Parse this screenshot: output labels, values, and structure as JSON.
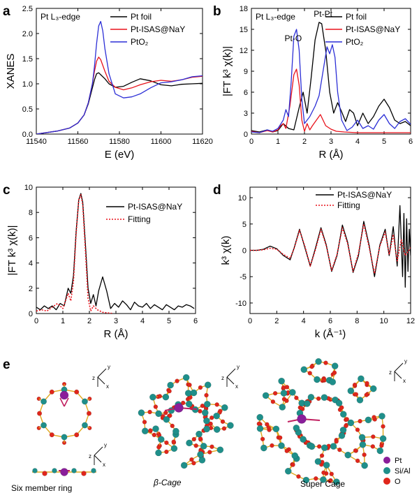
{
  "chart_data": [
    {
      "panel": "a",
      "type": "line",
      "annotation": "Pt L₃-edge",
      "xlabel": "E (eV)",
      "ylabel": "XANES",
      "xlim": [
        11540,
        11620
      ],
      "ylim": [
        0.0,
        2.5
      ],
      "xticks": [
        11540,
        11560,
        11580,
        11600,
        11620
      ],
      "yticks": [
        0.0,
        0.5,
        1.0,
        1.5,
        2.0,
        2.5
      ],
      "legend_position": "top-right",
      "series": [
        {
          "name": "Pt foil",
          "color": "#000000",
          "style": "solid",
          "x": [
            11540,
            11550,
            11556,
            11560,
            11563,
            11565,
            11567,
            11568,
            11569,
            11570,
            11571,
            11573,
            11575,
            11578,
            11582,
            11586,
            11590,
            11595,
            11600,
            11605,
            11610,
            11615,
            11620
          ],
          "y": [
            0.0,
            0.06,
            0.12,
            0.22,
            0.38,
            0.6,
            0.92,
            1.08,
            1.2,
            1.22,
            1.18,
            1.1,
            1.0,
            0.93,
            0.95,
            1.03,
            1.1,
            1.06,
            0.98,
            0.96,
            0.99,
            1.0,
            1.01
          ]
        },
        {
          "name": "Pt-ISAS@NaY",
          "color": "#e8121b",
          "style": "solid",
          "x": [
            11540,
            11550,
            11556,
            11560,
            11563,
            11565,
            11567,
            11568,
            11569,
            11570,
            11571,
            11573,
            11575,
            11578,
            11582,
            11586,
            11590,
            11595,
            11600,
            11605,
            11610,
            11615,
            11620
          ],
          "y": [
            0.0,
            0.06,
            0.12,
            0.22,
            0.38,
            0.62,
            1.0,
            1.25,
            1.45,
            1.53,
            1.48,
            1.25,
            1.05,
            0.93,
            0.88,
            0.92,
            0.98,
            1.04,
            1.07,
            1.05,
            1.08,
            1.13,
            1.15
          ]
        },
        {
          "name": "PtO₂",
          "color": "#2c2fd6",
          "style": "solid",
          "x": [
            11540,
            11550,
            11556,
            11560,
            11563,
            11565,
            11567,
            11568,
            11569,
            11570,
            11571,
            11572,
            11573,
            11575,
            11578,
            11582,
            11586,
            11590,
            11595,
            11600,
            11605,
            11610,
            11615,
            11620
          ],
          "y": [
            0.0,
            0.06,
            0.12,
            0.22,
            0.38,
            0.62,
            1.0,
            1.35,
            1.8,
            2.15,
            2.24,
            2.05,
            1.7,
            1.2,
            0.8,
            0.72,
            0.74,
            0.8,
            0.92,
            1.02,
            1.04,
            1.08,
            1.14,
            1.16
          ]
        }
      ]
    },
    {
      "panel": "b",
      "type": "line",
      "annotation": "Pt L₃-edge",
      "labels": [
        "Pt-O",
        "Pt-Pt"
      ],
      "xlabel": "R (Å)",
      "ylabel": "|FT k³ χ(k)|",
      "xlim": [
        0,
        6
      ],
      "ylim": [
        0,
        18
      ],
      "xticks": [
        0,
        1,
        2,
        3,
        4,
        5,
        6
      ],
      "yticks": [
        0,
        3,
        6,
        9,
        12,
        15,
        18
      ],
      "legend_position": "top-right",
      "series": [
        {
          "name": "Pt foil",
          "color": "#000000",
          "style": "solid",
          "x": [
            0.0,
            0.3,
            0.6,
            0.8,
            1.0,
            1.2,
            1.4,
            1.6,
            1.8,
            1.95,
            2.1,
            2.25,
            2.4,
            2.55,
            2.65,
            2.8,
            2.95,
            3.1,
            3.25,
            3.4,
            3.55,
            3.7,
            3.85,
            4.0,
            4.2,
            4.4,
            4.6,
            4.8,
            5.0,
            5.2,
            5.4,
            5.6,
            5.8,
            6.0
          ],
          "y": [
            0.5,
            0.3,
            0.6,
            0.3,
            0.5,
            1.5,
            0.8,
            0.6,
            3.8,
            6.0,
            3.0,
            8.0,
            13.5,
            16.0,
            15.8,
            12.0,
            6.0,
            3.0,
            4.5,
            3.2,
            1.8,
            3.5,
            3.0,
            1.2,
            3.0,
            1.5,
            2.5,
            4.0,
            5.0,
            3.8,
            2.0,
            1.5,
            1.8,
            1.2
          ]
        },
        {
          "name": "Pt-ISAS@NaY",
          "color": "#e8121b",
          "style": "solid",
          "x": [
            0.0,
            0.3,
            0.6,
            0.8,
            1.0,
            1.1,
            1.2,
            1.3,
            1.45,
            1.6,
            1.7,
            1.8,
            1.9,
            2.0,
            2.1,
            2.2,
            2.3,
            2.45,
            2.6,
            2.8,
            3.0,
            3.2,
            3.5,
            4.0,
            4.5,
            5.0,
            5.5,
            6.0
          ],
          "y": [
            0.4,
            0.2,
            0.5,
            0.3,
            0.6,
            1.2,
            1.5,
            0.8,
            4.0,
            8.5,
            9.3,
            7.0,
            2.0,
            0.4,
            1.5,
            0.6,
            1.2,
            2.0,
            2.8,
            1.2,
            0.7,
            0.4,
            0.3,
            0.2,
            0.2,
            0.2,
            0.2,
            0.2
          ]
        },
        {
          "name": "PtO₂",
          "color": "#2c2fd6",
          "style": "solid",
          "x": [
            0.0,
            0.3,
            0.6,
            0.8,
            1.0,
            1.2,
            1.3,
            1.4,
            1.5,
            1.6,
            1.7,
            1.8,
            1.9,
            2.0,
            2.2,
            2.4,
            2.55,
            2.7,
            2.85,
            2.95,
            3.05,
            3.15,
            3.25,
            3.4,
            3.6,
            3.8,
            4.0,
            4.2,
            4.4,
            4.6,
            4.8,
            5.0,
            5.2,
            5.4,
            5.6,
            5.8,
            6.0
          ],
          "y": [
            0.3,
            0.2,
            0.6,
            0.4,
            0.8,
            2.0,
            3.5,
            2.5,
            7.5,
            14.0,
            15.0,
            12.0,
            5.0,
            1.5,
            2.5,
            4.0,
            5.5,
            9.0,
            12.5,
            11.5,
            12.8,
            11.0,
            6.0,
            2.0,
            0.5,
            1.0,
            2.0,
            0.8,
            1.2,
            0.7,
            2.0,
            2.8,
            1.5,
            0.8,
            1.8,
            2.2,
            1.4
          ]
        }
      ]
    },
    {
      "panel": "c",
      "type": "line",
      "xlabel": "R (Å)",
      "ylabel": "|FT k³ χ(k)|",
      "xlim": [
        0,
        6
      ],
      "ylim": [
        0,
        10
      ],
      "xticks": [
        0,
        1,
        2,
        3,
        4,
        5,
        6
      ],
      "yticks": [
        0,
        2,
        4,
        6,
        8,
        10
      ],
      "legend_position": "top-right",
      "series": [
        {
          "name": "Pt-ISAS@NaY",
          "color": "#000000",
          "style": "solid",
          "x": [
            0.0,
            0.15,
            0.3,
            0.45,
            0.6,
            0.75,
            0.9,
            1.05,
            1.2,
            1.3,
            1.4,
            1.5,
            1.6,
            1.68,
            1.75,
            1.85,
            1.95,
            2.05,
            2.15,
            2.25,
            2.35,
            2.5,
            2.65,
            2.8,
            2.95,
            3.1,
            3.25,
            3.4,
            3.55,
            3.7,
            3.85,
            4.0,
            4.15,
            4.3,
            4.45,
            4.6,
            4.75,
            4.9,
            5.05,
            5.2,
            5.35,
            5.5,
            5.65,
            5.8,
            5.95
          ],
          "y": [
            0.5,
            0.3,
            0.6,
            0.4,
            0.6,
            0.3,
            0.8,
            0.6,
            2.0,
            1.6,
            3.0,
            6.5,
            9.0,
            9.5,
            8.8,
            5.5,
            2.0,
            0.8,
            1.5,
            0.6,
            1.8,
            2.9,
            1.8,
            0.4,
            0.8,
            0.5,
            1.0,
            0.7,
            0.3,
            0.9,
            0.6,
            0.5,
            0.8,
            0.4,
            0.7,
            0.5,
            0.3,
            0.7,
            0.5,
            0.3,
            0.6,
            0.5,
            0.7,
            0.6,
            0.4
          ]
        },
        {
          "name": "Fitting",
          "color": "#e8121b",
          "style": "dotted",
          "x": [
            0.0,
            0.2,
            0.4,
            0.6,
            0.8,
            1.0,
            1.1,
            1.2,
            1.3,
            1.4,
            1.5,
            1.6,
            1.68,
            1.75,
            1.85,
            1.95,
            2.05,
            2.15,
            2.3,
            2.5,
            2.7,
            2.9
          ],
          "y": [
            0.2,
            0.3,
            0.2,
            0.5,
            0.8,
            0.4,
            1.0,
            1.6,
            1.0,
            2.5,
            6.3,
            9.0,
            9.4,
            8.6,
            5.0,
            1.2,
            0.2,
            0.6,
            0.3,
            0.1,
            0.05,
            0.0
          ]
        }
      ]
    },
    {
      "panel": "d",
      "type": "line",
      "xlabel": "k (Å⁻¹)",
      "ylabel": "k³ χ(k)",
      "xlim": [
        0,
        12
      ],
      "ylim": [
        -12,
        12
      ],
      "xticks": [
        0,
        2,
        4,
        6,
        8,
        10,
        12
      ],
      "yticks": [
        -10,
        -5,
        0,
        5,
        10
      ],
      "legend_position": "top-right",
      "series": [
        {
          "name": "Pt-ISAS@NaY",
          "color": "#000000",
          "style": "solid",
          "x": [
            0.0,
            0.5,
            1.0,
            1.5,
            2.0,
            2.5,
            3.0,
            3.3,
            3.7,
            4.1,
            4.5,
            4.9,
            5.3,
            5.7,
            6.1,
            6.5,
            6.9,
            7.3,
            7.7,
            8.1,
            8.5,
            8.9,
            9.3,
            9.7,
            10.1,
            10.4,
            10.7,
            11.0,
            11.2,
            11.4,
            11.5,
            11.6,
            11.7,
            11.8,
            11.9,
            12.0
          ],
          "y": [
            0.0,
            0.0,
            0.2,
            0.8,
            0.3,
            -1.0,
            -1.8,
            0.5,
            4.0,
            0.5,
            -3.0,
            0.5,
            4.3,
            1.0,
            -4.0,
            -1.0,
            4.8,
            1.5,
            -4.2,
            -1.0,
            5.5,
            1.0,
            -5.0,
            1.0,
            4.0,
            -1.0,
            4.5,
            -3.0,
            8.5,
            -5.0,
            7.0,
            -7.0,
            6.0,
            -4.0,
            4.0,
            -1.0
          ]
        },
        {
          "name": "Fitting",
          "color": "#e8121b",
          "style": "dotted",
          "x": [
            0.0,
            0.5,
            1.0,
            1.5,
            2.0,
            2.5,
            3.0,
            3.3,
            3.7,
            4.1,
            4.5,
            4.9,
            5.3,
            5.7,
            6.1,
            6.5,
            6.9,
            7.3,
            7.7,
            8.1,
            8.5,
            8.9,
            9.3,
            9.7,
            10.1,
            10.4,
            10.7,
            11.0,
            11.3,
            11.6,
            12.0
          ],
          "y": [
            0.0,
            0.0,
            0.1,
            0.4,
            0.2,
            -0.8,
            -1.5,
            0.4,
            3.8,
            0.8,
            -3.0,
            0.2,
            4.0,
            0.8,
            -3.8,
            -0.8,
            4.3,
            1.2,
            -4.0,
            -0.6,
            5.0,
            0.6,
            -4.4,
            0.8,
            3.5,
            -0.8,
            3.0,
            -2.0,
            2.0,
            -1.0,
            0.5
          ]
        }
      ]
    }
  ],
  "panel_e": {
    "letter": "e",
    "structures": [
      "Six member ring",
      "β-Cage",
      "Super Cage"
    ],
    "legend": [
      {
        "label": "Pt",
        "color": "#8a1e9a"
      },
      {
        "label": "Si/Al",
        "color": "#1f8f8a"
      },
      {
        "label": "O",
        "color": "#e0261b"
      }
    ],
    "axis_labels": {
      "x": "x",
      "y": "y",
      "z": "z"
    }
  }
}
